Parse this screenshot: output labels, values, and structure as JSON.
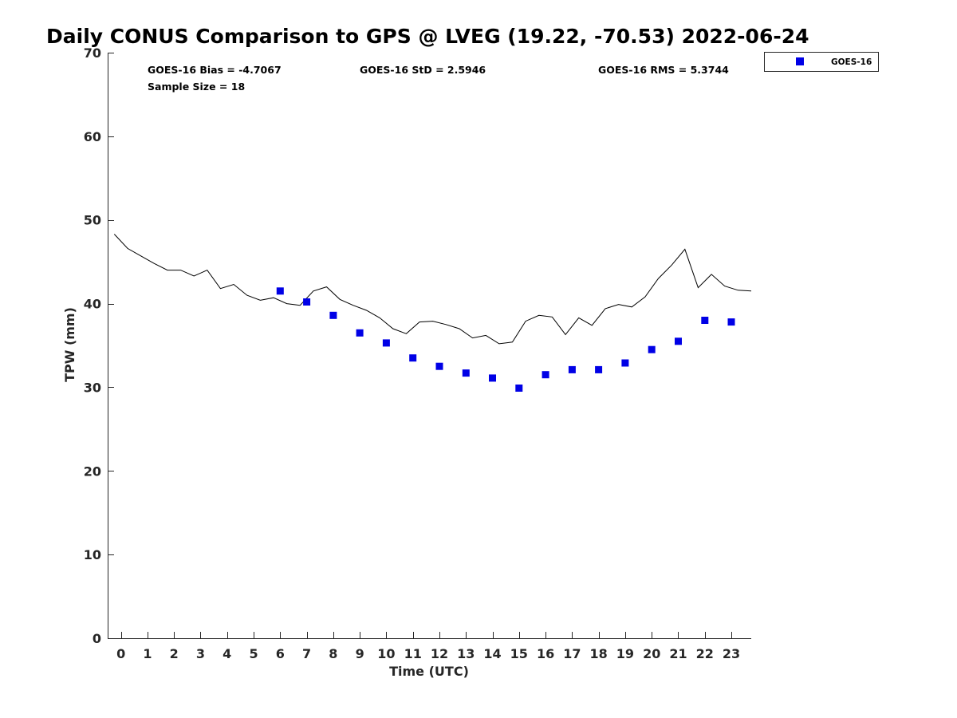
{
  "chart_data": {
    "type": "scatter",
    "title": "Daily CONUS Comparison to GPS @ LVEG (19.22, -70.53) 2022-06-24",
    "xlabel": "Time (UTC)",
    "ylabel": "TPW (mm)",
    "xlim": [
      -0.5,
      23.75
    ],
    "ylim": [
      0,
      70
    ],
    "x_ticks": [
      0,
      1,
      2,
      3,
      4,
      5,
      6,
      7,
      8,
      9,
      10,
      11,
      12,
      13,
      14,
      15,
      16,
      17,
      18,
      19,
      20,
      21,
      22,
      23
    ],
    "y_ticks": [
      0,
      10,
      20,
      30,
      40,
      50,
      60,
      70
    ],
    "grid": false,
    "legend_position": "outside-top-right",
    "stats": {
      "bias": "GOES-16 Bias = -4.7067",
      "std": "GOES-16 StD = 2.5946",
      "rms": "GOES-16 RMS = 5.3744",
      "sample_size": "Sample Size = 18"
    },
    "series": [
      {
        "name": "GOES-16",
        "style": "markers",
        "marker": "square",
        "color": "#0000e6",
        "x": [
          6,
          7,
          8,
          9,
          10,
          11,
          12,
          13,
          14,
          15,
          16,
          17,
          18,
          19,
          20,
          21,
          22,
          23
        ],
        "y": [
          41.5,
          40.2,
          38.6,
          36.5,
          35.3,
          33.5,
          32.5,
          31.7,
          31.1,
          29.9,
          31.5,
          32.1,
          32.1,
          32.9,
          34.5,
          35.5,
          38.0,
          37.8
        ]
      },
      {
        "style": "line",
        "color": "#000000",
        "x": [
          -0.25,
          0.25,
          0.75,
          1.25,
          1.75,
          2.25,
          2.75,
          3.25,
          3.75,
          4.25,
          4.75,
          5.25,
          5.75,
          6.25,
          6.75,
          7.25,
          7.75,
          8.25,
          8.75,
          9.25,
          9.75,
          10.25,
          10.75,
          11.25,
          11.75,
          12.25,
          12.75,
          13.25,
          13.75,
          14.25,
          14.75,
          15.25,
          15.75,
          16.25,
          16.75,
          17.25,
          17.75,
          18.25,
          18.75,
          19.25,
          19.75,
          20.25,
          20.75,
          21.25,
          21.75,
          22.25,
          22.75,
          23.25,
          23.75
        ],
        "y": [
          48.3,
          46.6,
          45.7,
          44.8,
          44.0,
          44.0,
          43.3,
          44.0,
          41.8,
          42.3,
          41.0,
          40.4,
          40.7,
          40.0,
          39.8,
          41.5,
          42.0,
          40.5,
          39.8,
          39.2,
          38.3,
          37.0,
          36.4,
          37.8,
          37.9,
          37.5,
          37.0,
          35.9,
          36.2,
          35.2,
          35.4,
          37.9,
          38.6,
          38.4,
          36.3,
          38.3,
          37.4,
          39.4,
          39.9,
          39.6,
          40.8,
          43.0,
          44.6,
          46.5,
          41.9,
          43.5,
          42.1,
          41.6,
          41.5
        ]
      }
    ]
  }
}
